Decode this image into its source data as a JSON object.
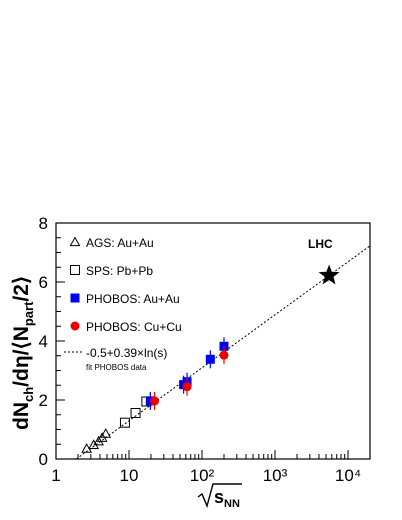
{
  "chart_data": {
    "type": "scatter",
    "xscale": "log",
    "xlim": [
      1,
      20000
    ],
    "ylim": [
      0,
      8
    ],
    "grid": false,
    "legend_position": "top-left",
    "x_tick_labels": [
      "1",
      "10",
      "10²",
      "10³",
      "10⁴"
    ],
    "y_tick_labels": [
      "0",
      "2",
      "4",
      "6",
      "8"
    ],
    "xlabel": "√sNN",
    "ylabel": "dNch/dη/⟨Npart/2⟩",
    "series": [
      {
        "name": "AGS: Au+Au",
        "marker": "open-triangle",
        "color": "#000000",
        "points": [
          {
            "x": 2.63,
            "y": 0.35
          },
          {
            "x": 3.28,
            "y": 0.48
          },
          {
            "x": 3.84,
            "y": 0.6
          },
          {
            "x": 4.29,
            "y": 0.72
          },
          {
            "x": 4.8,
            "y": 0.86
          }
        ]
      },
      {
        "name": "SPS: Pb+Pb",
        "marker": "open-square",
        "color": "#000000",
        "points": [
          {
            "x": 8.8,
            "y": 1.23
          },
          {
            "x": 12.3,
            "y": 1.56
          },
          {
            "x": 17.3,
            "y": 1.95
          }
        ]
      },
      {
        "name": "PHOBOS: Au+Au",
        "marker": "filled-square",
        "color": "#0000ee",
        "points": [
          {
            "x": 19.6,
            "y": 1.97
          },
          {
            "x": 56,
            "y": 2.52
          },
          {
            "x": 62.4,
            "y": 2.62
          },
          {
            "x": 130,
            "y": 3.38
          },
          {
            "x": 200,
            "y": 3.82
          }
        ]
      },
      {
        "name": "PHOBOS: Cu+Cu",
        "marker": "filled-circle",
        "color": "#ee0000",
        "points": [
          {
            "x": 22.4,
            "y": 1.97
          },
          {
            "x": 62.4,
            "y": 2.45
          },
          {
            "x": 200,
            "y": 3.52
          }
        ]
      }
    ],
    "fit": {
      "label": "-0.5+0.39×ln(s)",
      "sublabel": "fit PHOBOS data",
      "intercept": -0.5,
      "slope_ln_s": 0.39,
      "x_range": [
        1.9,
        20000
      ],
      "style": "dotted"
    },
    "annotation": {
      "text": "LHC",
      "x": 5500,
      "y": 6.22,
      "marker": "filled-star"
    }
  }
}
